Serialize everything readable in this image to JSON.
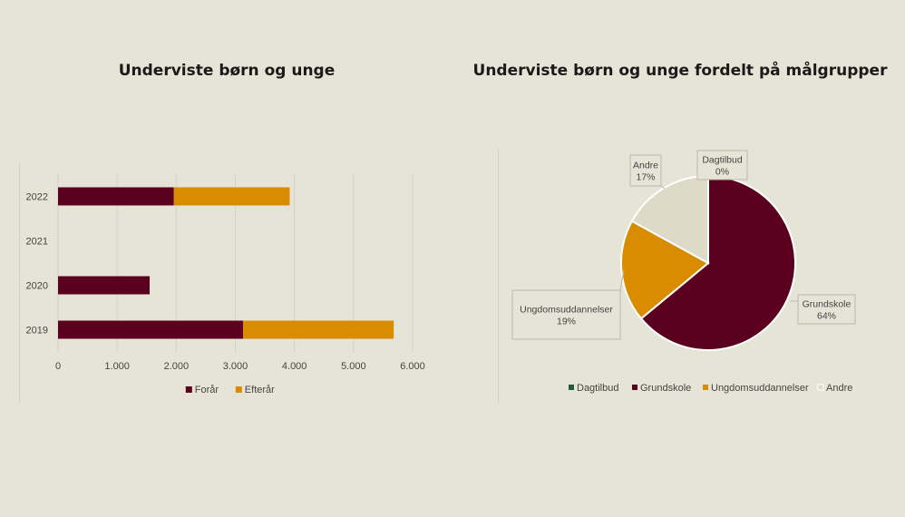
{
  "chart_data": [
    {
      "type": "bar",
      "orientation": "horizontal",
      "stacked": true,
      "title": "Underviste børn og unge",
      "categories": [
        "2022",
        "2021",
        "2020",
        "2019"
      ],
      "series": [
        {
          "name": "Forår",
          "values": [
            1960,
            0,
            1550,
            3130
          ],
          "color": "#5c0020"
        },
        {
          "name": "Efterår",
          "values": [
            1960,
            0,
            0,
            2550
          ],
          "color": "#d98c00"
        }
      ],
      "x_ticks": [
        "0",
        "1.000",
        "2.000",
        "3.000",
        "4.000",
        "5.000",
        "6.000"
      ],
      "xlim": [
        0,
        6000
      ],
      "grid": true,
      "legend_position": "bottom"
    },
    {
      "type": "pie",
      "title": "Underviste børn og unge fordelt på målgrupper",
      "slices": [
        {
          "name": "Dagtilbud",
          "value": 0,
          "label": "Dagtilbud\n0%",
          "color": "#1f5c3a"
        },
        {
          "name": "Grundskole",
          "value": 64,
          "label": "Grundskole\n64%",
          "color": "#5c0020"
        },
        {
          "name": "Ungdomsuddannelser",
          "value": 19,
          "label": "Ungdomsuddannelser\n19%",
          "color": "#d98c00"
        },
        {
          "name": "Andre",
          "value": 17,
          "label": "Andre\n17%",
          "color": "#dddbc8"
        }
      ],
      "legend_position": "bottom"
    }
  ]
}
